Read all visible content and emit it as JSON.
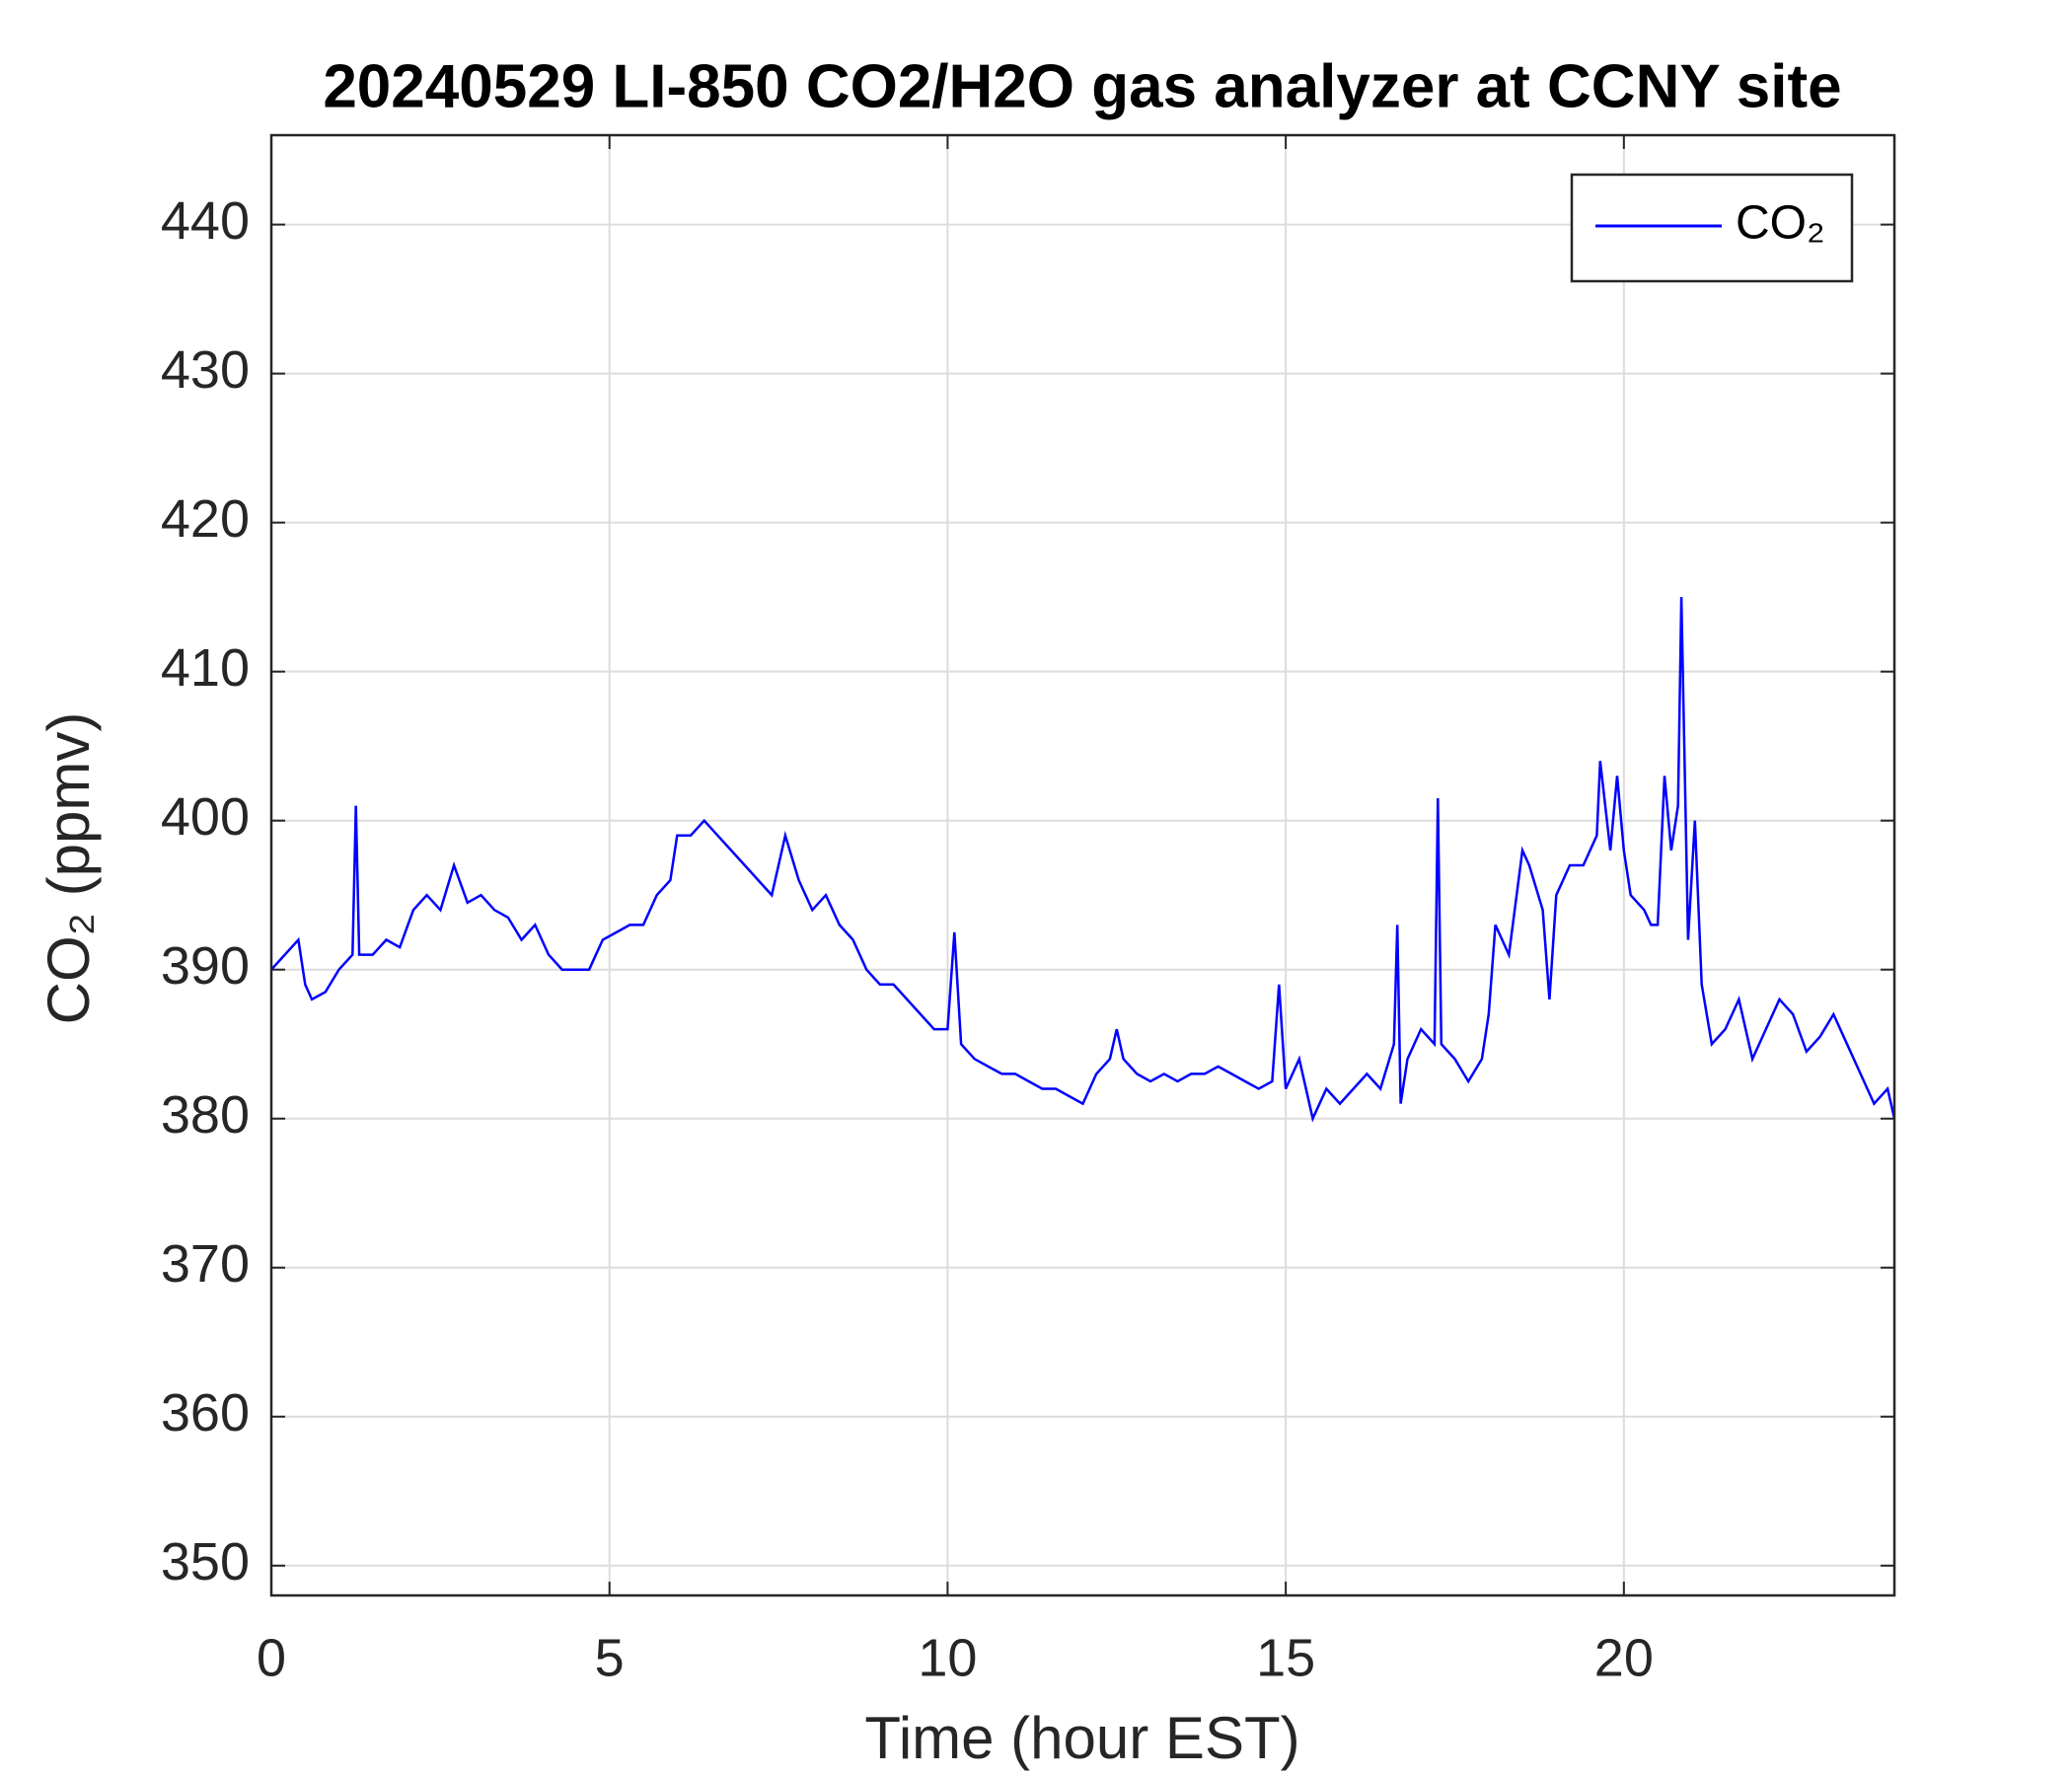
{
  "chart_data": {
    "type": "line",
    "title": "20240529 LI-850 CO2/H2O gas analyzer at CCNY site",
    "x_label": "Time (hour EST)",
    "y_label": "CO₂ (ppmv)",
    "x": [
      0,
      0.2,
      0.4,
      0.5,
      0.6,
      0.8,
      1.0,
      1.2,
      1.25,
      1.3,
      1.5,
      1.7,
      1.9,
      2.1,
      2.3,
      2.5,
      2.7,
      2.9,
      3.1,
      3.3,
      3.5,
      3.7,
      3.9,
      4.1,
      4.3,
      4.5,
      4.7,
      4.9,
      5.1,
      5.3,
      5.5,
      5.7,
      5.9,
      6.0,
      6.2,
      6.4,
      6.6,
      6.8,
      7.0,
      7.2,
      7.4,
      7.6,
      7.8,
      8.0,
      8.2,
      8.4,
      8.6,
      8.8,
      9.0,
      9.2,
      9.4,
      9.6,
      9.8,
      10.0,
      10.1,
      10.2,
      10.4,
      10.6,
      10.8,
      11.0,
      11.2,
      11.4,
      11.6,
      11.8,
      12.0,
      12.2,
      12.4,
      12.5,
      12.6,
      12.8,
      13.0,
      13.2,
      13.4,
      13.6,
      13.8,
      14.0,
      14.2,
      14.4,
      14.6,
      14.8,
      14.9,
      15.0,
      15.2,
      15.4,
      15.6,
      15.8,
      16.0,
      16.2,
      16.4,
      16.6,
      16.65,
      16.7,
      16.8,
      17.0,
      17.2,
      17.25,
      17.3,
      17.5,
      17.7,
      17.9,
      18.0,
      18.1,
      18.3,
      18.5,
      18.6,
      18.8,
      18.9,
      19.0,
      19.2,
      19.4,
      19.6,
      19.65,
      19.8,
      19.9,
      20.0,
      20.1,
      20.3,
      20.4,
      20.5,
      20.6,
      20.7,
      20.8,
      20.85,
      20.95,
      21.05,
      21.15,
      21.3,
      21.5,
      21.7,
      21.9,
      22.1,
      22.3,
      22.5,
      22.7,
      22.9,
      23.1,
      23.3,
      23.5,
      23.7,
      23.9,
      24
    ],
    "series": [
      {
        "name": "CO₂",
        "color": "#0000ff",
        "values": [
          390,
          391,
          392,
          389,
          388,
          388.5,
          390,
          391,
          401,
          391,
          391,
          392,
          391.5,
          394,
          395,
          394,
          397,
          394.5,
          395,
          394,
          393.5,
          392,
          393,
          391,
          390,
          390,
          390,
          392,
          392.5,
          393,
          393,
          395,
          396,
          399,
          399,
          400,
          399,
          398,
          397,
          396,
          395,
          399,
          396,
          394,
          395,
          393,
          392,
          390,
          389,
          389,
          388,
          387,
          386,
          386,
          392.5,
          385,
          384,
          383.5,
          383,
          383,
          382.5,
          382,
          382,
          381.5,
          381,
          383,
          384,
          386,
          384,
          383,
          382.5,
          383,
          382.5,
          383,
          383,
          383.5,
          383,
          382.5,
          382,
          382.5,
          389,
          382,
          384,
          380,
          382,
          381,
          382,
          383,
          382,
          385,
          393,
          381,
          384,
          386,
          385,
          401.5,
          385,
          384,
          382.5,
          384,
          387,
          393,
          391,
          398,
          397,
          394,
          388,
          395,
          397,
          397,
          399,
          404,
          398,
          403,
          398,
          395,
          394,
          393,
          393,
          403,
          398,
          401,
          415,
          392,
          400,
          389,
          385,
          386,
          388,
          384,
          386,
          388,
          387,
          384.5,
          385.5,
          387,
          385,
          383,
          381,
          382,
          380
        ]
      }
    ],
    "xlim": [
      0,
      24
    ],
    "ylim": [
      348,
      446
    ],
    "xticks": [
      0,
      5,
      10,
      15,
      20
    ],
    "yticks": [
      350,
      360,
      370,
      380,
      390,
      400,
      410,
      420,
      430,
      440
    ],
    "grid": true,
    "legend": "upper right"
  }
}
